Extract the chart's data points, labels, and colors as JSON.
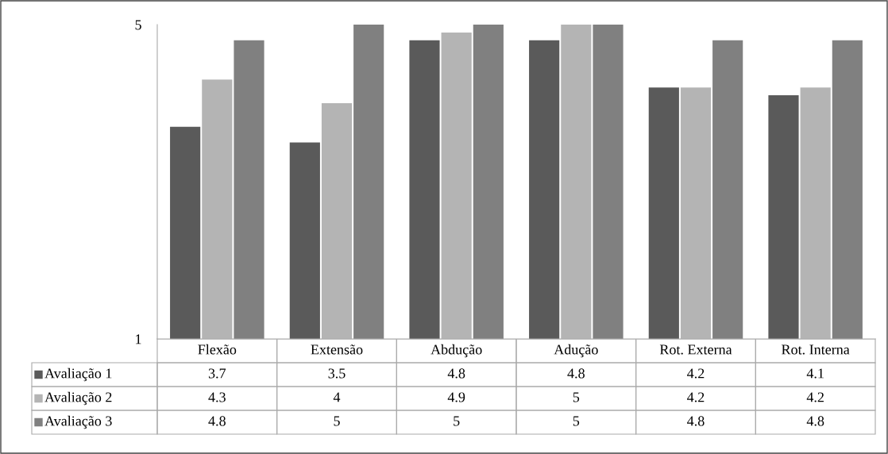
{
  "chart_data": {
    "type": "bar",
    "categories": [
      "Flexão",
      "Extensão",
      "Abdução",
      "Adução",
      "Rot. Externa",
      "Rot. Interna"
    ],
    "series": [
      {
        "name": "Avaliação 1",
        "color": "#5a5a5a",
        "values": [
          3.7,
          3.5,
          4.8,
          4.8,
          4.2,
          4.1
        ]
      },
      {
        "name": "Avaliação 2",
        "color": "#b4b4b4",
        "values": [
          4.3,
          4,
          4.9,
          5,
          4.2,
          4.2
        ]
      },
      {
        "name": "Avaliação 3",
        "color": "#808080",
        "values": [
          4.8,
          5,
          5,
          5,
          4.8,
          4.8
        ]
      }
    ],
    "ylim": [
      1,
      5
    ],
    "yticks": [
      1,
      5
    ],
    "grid": false,
    "data_labels": true,
    "legend": "bottom"
  }
}
